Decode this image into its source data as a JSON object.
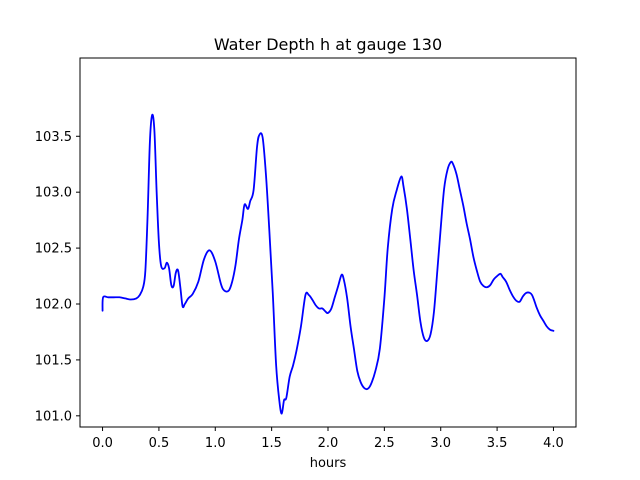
{
  "chart_data": {
    "type": "line",
    "title": "Water Depth h at gauge 130",
    "xlabel": "hours",
    "ylabel": "",
    "xlim": [
      -0.2,
      4.2
    ],
    "ylim": [
      100.9,
      104.2
    ],
    "xticks": [
      0.0,
      0.5,
      1.0,
      1.5,
      2.0,
      2.5,
      3.0,
      3.5,
      4.0
    ],
    "xtick_labels": [
      "0.0",
      "0.5",
      "1.0",
      "1.5",
      "2.0",
      "2.5",
      "3.0",
      "3.5",
      "4.0"
    ],
    "yticks": [
      101.0,
      101.5,
      102.0,
      102.5,
      103.0,
      103.5
    ],
    "ytick_labels": [
      "101.0",
      "101.5",
      "102.0",
      "102.5",
      "103.0",
      "103.5"
    ],
    "grid": false,
    "legend": "none",
    "series": [
      {
        "color": "#0000ff",
        "x": [
          0.0,
          0.005,
          0.05,
          0.1,
          0.15,
          0.2,
          0.25,
          0.3,
          0.33,
          0.36,
          0.38,
          0.4,
          0.42,
          0.44,
          0.46,
          0.48,
          0.5,
          0.52,
          0.55,
          0.57,
          0.59,
          0.61,
          0.63,
          0.65,
          0.67,
          0.69,
          0.71,
          0.73,
          0.76,
          0.8,
          0.85,
          0.9,
          0.95,
          1.0,
          1.05,
          1.08,
          1.12,
          1.15,
          1.18,
          1.21,
          1.24,
          1.26,
          1.29,
          1.31,
          1.34,
          1.37,
          1.39,
          1.42,
          1.45,
          1.48,
          1.51,
          1.54,
          1.57,
          1.59,
          1.61,
          1.63,
          1.66,
          1.69,
          1.72,
          1.76,
          1.8,
          1.83,
          1.86,
          1.89,
          1.92,
          1.95,
          1.98,
          2.0,
          2.03,
          2.06,
          2.09,
          2.12,
          2.14,
          2.17,
          2.2,
          2.23,
          2.26,
          2.29,
          2.32,
          2.35,
          2.38,
          2.42,
          2.46,
          2.5,
          2.53,
          2.57,
          2.61,
          2.65,
          2.67,
          2.7,
          2.73,
          2.76,
          2.79,
          2.82,
          2.85,
          2.88,
          2.91,
          2.94,
          2.97,
          3.0,
          3.03,
          3.06,
          3.09,
          3.11,
          3.14,
          3.17,
          3.2,
          3.23,
          3.26,
          3.29,
          3.32,
          3.35,
          3.38,
          3.41,
          3.44,
          3.47,
          3.5,
          3.53,
          3.55,
          3.58,
          3.61,
          3.64,
          3.67,
          3.7,
          3.73,
          3.76,
          3.79,
          3.81,
          3.83,
          3.85,
          3.88,
          3.91,
          3.94,
          3.97,
          4.0
        ],
        "y": [
          101.94,
          102.06,
          102.06,
          102.06,
          102.06,
          102.05,
          102.04,
          102.05,
          102.08,
          102.15,
          102.3,
          102.8,
          103.45,
          103.69,
          103.55,
          103.0,
          102.55,
          102.34,
          102.32,
          102.37,
          102.32,
          102.17,
          102.16,
          102.28,
          102.3,
          102.15,
          101.98,
          102.0,
          102.05,
          102.09,
          102.2,
          102.4,
          102.48,
          102.38,
          102.18,
          102.12,
          102.12,
          102.2,
          102.35,
          102.58,
          102.75,
          102.89,
          102.85,
          102.92,
          103.02,
          103.4,
          103.51,
          103.49,
          103.15,
          102.65,
          102.1,
          101.45,
          101.12,
          101.02,
          101.14,
          101.16,
          101.35,
          101.45,
          101.58,
          101.8,
          102.08,
          102.08,
          102.04,
          101.99,
          101.96,
          101.96,
          101.93,
          101.92,
          101.96,
          102.06,
          102.16,
          102.26,
          102.22,
          102.05,
          101.8,
          101.6,
          101.4,
          101.3,
          101.25,
          101.24,
          101.28,
          101.4,
          101.6,
          102.05,
          102.5,
          102.85,
          103.02,
          103.14,
          103.05,
          102.85,
          102.58,
          102.3,
          102.08,
          101.84,
          101.7,
          101.67,
          101.73,
          101.93,
          102.3,
          102.68,
          103.03,
          103.2,
          103.27,
          103.25,
          103.16,
          103.02,
          102.88,
          102.72,
          102.58,
          102.42,
          102.3,
          102.2,
          102.16,
          102.15,
          102.17,
          102.22,
          102.25,
          102.27,
          102.24,
          102.2,
          102.13,
          102.07,
          102.03,
          102.02,
          102.07,
          102.1,
          102.1,
          102.08,
          102.03,
          101.97,
          101.9,
          101.85,
          101.8,
          101.77,
          101.76
        ]
      }
    ]
  }
}
